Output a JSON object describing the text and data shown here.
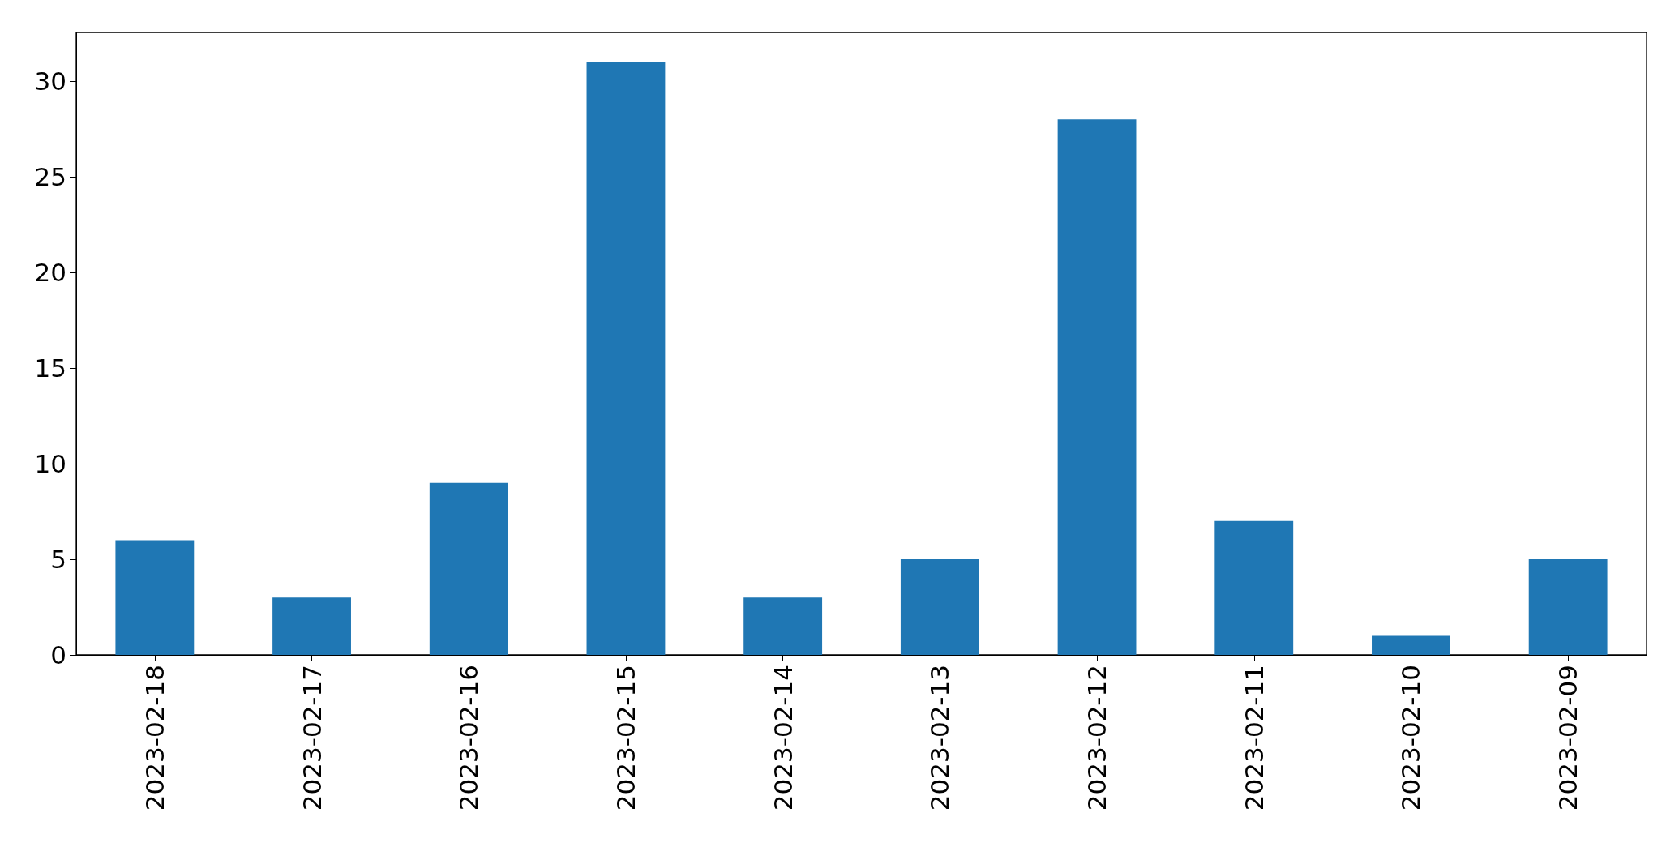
{
  "chart_data": {
    "type": "bar",
    "categories": [
      "2023-02-18",
      "2023-02-17",
      "2023-02-16",
      "2023-02-15",
      "2023-02-14",
      "2023-02-13",
      "2023-02-12",
      "2023-02-11",
      "2023-02-10",
      "2023-02-09"
    ],
    "values": [
      6,
      3,
      9,
      31,
      3,
      5,
      28,
      7,
      1,
      5
    ],
    "color": "#1f77b4",
    "ylim": [
      0,
      32.55
    ],
    "yticks": [
      0,
      5,
      10,
      15,
      20,
      25,
      30
    ],
    "grid": false
  }
}
